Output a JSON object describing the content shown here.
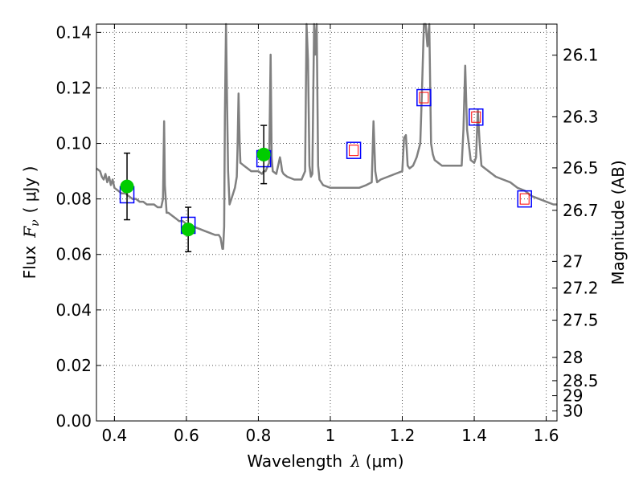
{
  "chart_data": {
    "type": "line",
    "title": "",
    "xlabel": "Wavelength",
    "xlabel_symbol": "λ",
    "xlabel_unit": "(μm)",
    "ylabel": "Flux",
    "ylabel_symbol": "F",
    "ylabel_symbol_sub": "ν",
    "ylabel_unit": "( μJy )",
    "y2label": "Magnitude (AB)",
    "xlim": [
      0.35,
      1.63
    ],
    "ylim": [
      0.0,
      0.143
    ],
    "grid": true,
    "grid_style": "dotted",
    "x_ticks": [
      0.4,
      0.6,
      0.8,
      1.0,
      1.2,
      1.4,
      1.6
    ],
    "x_tick_labels": [
      "0.4",
      "0.6",
      "0.8",
      "1",
      "1.2",
      "1.4",
      "1.6"
    ],
    "y_ticks": [
      0.0,
      0.02,
      0.04,
      0.06,
      0.08,
      0.1,
      0.12,
      0.14
    ],
    "y_tick_labels": [
      "0.00",
      "0.02",
      "0.04",
      "0.06",
      "0.08",
      "0.10",
      "0.12",
      "0.14"
    ],
    "y2_ticks": [
      {
        "label": "26.1",
        "flux": 0.1318
      },
      {
        "label": "26.3",
        "flux": 0.1096
      },
      {
        "label": "26.5",
        "flux": 0.0912
      },
      {
        "label": "26.7",
        "flux": 0.0759
      },
      {
        "label": "27",
        "flux": 0.0575
      },
      {
        "label": "27.2",
        "flux": 0.0479
      },
      {
        "label": "27.5",
        "flux": 0.0363
      },
      {
        "label": "28",
        "flux": 0.0229
      },
      {
        "label": "28.5",
        "flux": 0.0145
      },
      {
        "label": "29",
        "flux": 0.0091
      },
      {
        "label": "30",
        "flux": 0.0036
      }
    ],
    "colors": {
      "spectrum": "#808080",
      "model_box": "#0000ff",
      "inner_box": "#ff0000",
      "observed": "#00cc00",
      "error": "#000000",
      "grid": "#555555"
    },
    "series": [
      {
        "kind": "spectrum",
        "x": [
          0.35,
          0.36,
          0.365,
          0.37,
          0.375,
          0.38,
          0.385,
          0.39,
          0.395,
          0.4,
          0.41,
          0.42,
          0.43,
          0.44,
          0.45,
          0.46,
          0.47,
          0.48,
          0.49,
          0.5,
          0.51,
          0.52,
          0.53,
          0.535,
          0.538,
          0.54,
          0.545,
          0.55,
          0.56,
          0.57,
          0.58,
          0.59,
          0.6,
          0.62,
          0.64,
          0.66,
          0.68,
          0.69,
          0.695,
          0.7,
          0.702,
          0.705,
          0.707,
          0.71,
          0.713,
          0.716,
          0.72,
          0.725,
          0.73,
          0.735,
          0.74,
          0.742,
          0.745,
          0.748,
          0.75,
          0.76,
          0.77,
          0.78,
          0.79,
          0.8,
          0.81,
          0.815,
          0.82,
          0.83,
          0.834,
          0.837,
          0.84,
          0.85,
          0.86,
          0.863,
          0.866,
          0.87,
          0.88,
          0.9,
          0.92,
          0.93,
          0.934,
          0.938,
          0.942,
          0.946,
          0.95,
          0.955,
          0.958,
          0.962,
          0.966,
          0.97,
          0.98,
          1.0,
          1.02,
          1.04,
          1.06,
          1.08,
          1.1,
          1.115,
          1.12,
          1.125,
          1.13,
          1.14,
          1.16,
          1.18,
          1.2,
          1.205,
          1.21,
          1.215,
          1.22,
          1.23,
          1.24,
          1.25,
          1.255,
          1.26,
          1.265,
          1.27,
          1.275,
          1.28,
          1.285,
          1.29,
          1.3,
          1.31,
          1.32,
          1.34,
          1.36,
          1.365,
          1.37,
          1.375,
          1.38,
          1.39,
          1.4,
          1.405,
          1.41,
          1.415,
          1.42,
          1.44,
          1.46,
          1.48,
          1.5,
          1.52,
          1.54,
          1.56,
          1.58,
          1.6,
          1.62,
          1.63
        ],
        "y": [
          0.091,
          0.09,
          0.088,
          0.087,
          0.089,
          0.086,
          0.088,
          0.085,
          0.087,
          0.084,
          0.083,
          0.082,
          0.082,
          0.081,
          0.08,
          0.08,
          0.079,
          0.079,
          0.078,
          0.078,
          0.078,
          0.077,
          0.077,
          0.08,
          0.108,
          0.085,
          0.075,
          0.075,
          0.074,
          0.073,
          0.072,
          0.072,
          0.071,
          0.07,
          0.069,
          0.068,
          0.067,
          0.067,
          0.066,
          0.062,
          0.062,
          0.07,
          0.11,
          0.145,
          0.115,
          0.09,
          0.078,
          0.08,
          0.082,
          0.084,
          0.088,
          0.098,
          0.118,
          0.1,
          0.093,
          0.092,
          0.091,
          0.09,
          0.09,
          0.09,
          0.089,
          0.09,
          0.09,
          0.093,
          0.132,
          0.095,
          0.09,
          0.089,
          0.095,
          0.093,
          0.09,
          0.089,
          0.088,
          0.087,
          0.087,
          0.09,
          0.145,
          0.13,
          0.092,
          0.088,
          0.089,
          0.145,
          0.132,
          0.145,
          0.092,
          0.087,
          0.085,
          0.084,
          0.084,
          0.084,
          0.084,
          0.084,
          0.085,
          0.086,
          0.108,
          0.09,
          0.086,
          0.087,
          0.088,
          0.089,
          0.09,
          0.102,
          0.103,
          0.092,
          0.091,
          0.092,
          0.095,
          0.1,
          0.12,
          0.145,
          0.145,
          0.135,
          0.145,
          0.1,
          0.096,
          0.094,
          0.093,
          0.092,
          0.092,
          0.092,
          0.092,
          0.092,
          0.105,
          0.128,
          0.105,
          0.094,
          0.093,
          0.095,
          0.112,
          0.1,
          0.092,
          0.09,
          0.088,
          0.087,
          0.086,
          0.084,
          0.083,
          0.081,
          0.08,
          0.079,
          0.078,
          0.078
        ]
      }
    ],
    "model_points": {
      "x": [
        0.435,
        0.605,
        0.815,
        1.065,
        1.26,
        1.405,
        1.54
      ],
      "y": [
        0.0815,
        0.0705,
        0.0945,
        0.0975,
        0.1165,
        0.1095,
        0.08
      ],
      "inner_box": [
        false,
        false,
        false,
        true,
        true,
        true,
        true
      ]
    },
    "observed_points": {
      "x": [
        0.435,
        0.605,
        0.815
      ],
      "y": [
        0.0845,
        0.069,
        0.096
      ],
      "yerr": [
        0.012,
        0.008,
        0.0105
      ]
    }
  }
}
